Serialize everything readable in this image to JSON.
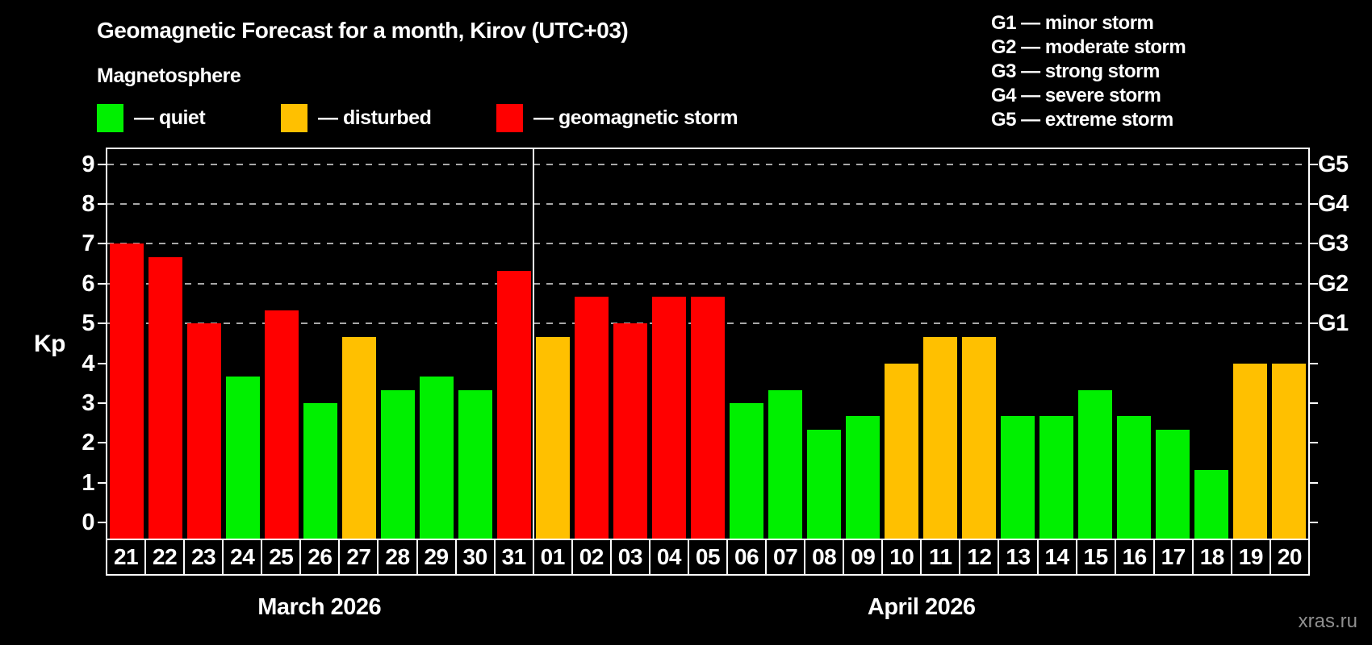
{
  "title": "Geomagnetic Forecast for a month, Kirov (UTC+03)",
  "subtitle": "Magnetosphere",
  "legend": {
    "quiet_label": "— quiet",
    "disturbed_label": "— disturbed",
    "storm_label": "— geomagnetic storm"
  },
  "g_scale": [
    "G1 — minor storm",
    "G2 — moderate storm",
    "G3 — strong storm",
    "G4 — severe storm",
    "G5 — extreme storm"
  ],
  "axis": {
    "kp_label": "Kp",
    "left_ticks": [
      "0",
      "1",
      "2",
      "3",
      "4",
      "5",
      "6",
      "7",
      "8",
      "9"
    ],
    "g_ticks": [
      {
        "kp": 5,
        "label": "G1"
      },
      {
        "kp": 6,
        "label": "G2"
      },
      {
        "kp": 7,
        "label": "G3"
      },
      {
        "kp": 8,
        "label": "G4"
      },
      {
        "kp": 9,
        "label": "G5"
      }
    ]
  },
  "months": [
    {
      "label": "March 2026",
      "days": 11
    },
    {
      "label": "April 2026",
      "days": 20
    }
  ],
  "colors": {
    "quiet": "#00f000",
    "disturbed": "#ffc000",
    "storm": "#ff0000",
    "grid": "#a8a8a8",
    "axis": "#ffffff",
    "watermark": "#8f8f8f"
  },
  "watermark": "xras.ru",
  "chart_data": {
    "type": "bar",
    "title": "Geomagnetic Forecast for a month, Kirov (UTC+03)",
    "xlabel": "",
    "ylabel": "Kp",
    "ylim": [
      0,
      9.4
    ],
    "grid": "dashed horizontal lines at Kp 5-9 only",
    "legend_position": "top-left (quiet/disturbed/storm), top-right (G1-G5 scale)",
    "categories": [
      "21",
      "22",
      "23",
      "24",
      "25",
      "26",
      "27",
      "28",
      "29",
      "30",
      "31",
      "01",
      "02",
      "03",
      "04",
      "05",
      "06",
      "07",
      "08",
      "09",
      "10",
      "11",
      "12",
      "13",
      "14",
      "15",
      "16",
      "17",
      "18",
      "19",
      "20"
    ],
    "values": [
      7.0,
      6.67,
      5.0,
      3.67,
      5.33,
      3.0,
      4.67,
      3.33,
      3.67,
      3.33,
      6.33,
      4.67,
      5.67,
      5.0,
      5.67,
      5.67,
      3.0,
      3.33,
      2.33,
      2.67,
      4.0,
      4.67,
      4.67,
      2.67,
      2.67,
      3.33,
      2.67,
      2.33,
      1.33,
      4.0,
      4.0
    ],
    "levels": [
      "storm",
      "storm",
      "storm",
      "quiet",
      "storm",
      "quiet",
      "disturbed",
      "quiet",
      "quiet",
      "quiet",
      "storm",
      "disturbed",
      "storm",
      "storm",
      "storm",
      "storm",
      "quiet",
      "quiet",
      "quiet",
      "quiet",
      "disturbed",
      "disturbed",
      "disturbed",
      "quiet",
      "quiet",
      "quiet",
      "quiet",
      "quiet",
      "quiet",
      "disturbed",
      "disturbed"
    ]
  }
}
